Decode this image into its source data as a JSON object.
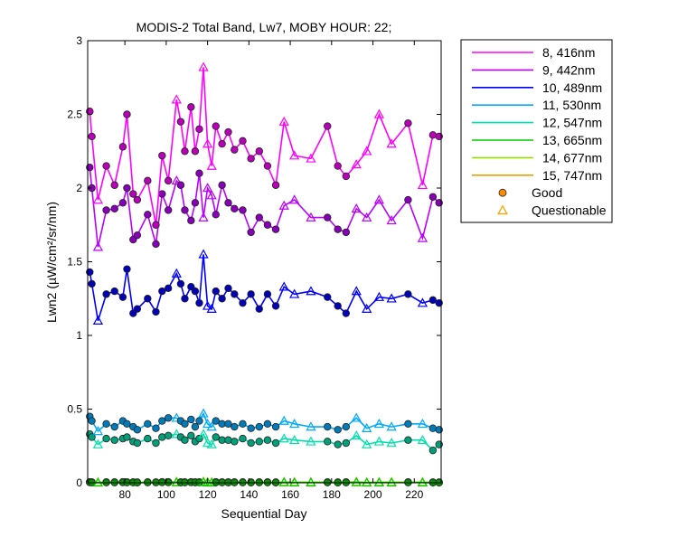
{
  "chart_data": {
    "type": "line",
    "title": "MODIS-2 Total Band, Lw7, MOBY HOUR: 22;",
    "xlabel": "Sequential Day",
    "ylabel": "Lwn2 (µW/cm²/sr/nm)",
    "xlim": [
      62,
      233
    ],
    "ylim": [
      0,
      3
    ],
    "xticks": [
      80,
      100,
      120,
      140,
      160,
      180,
      200,
      220
    ],
    "yticks": [
      0,
      0.5,
      1,
      1.5,
      2,
      2.5,
      3
    ],
    "ytick_labels": [
      "0",
      "0.5",
      "1",
      "1.5",
      "2",
      "2.5",
      "3"
    ],
    "grid": false,
    "legend_position": "outside-right",
    "markers": [
      {
        "name": "Good",
        "symbol": "circle",
        "color": "#ff8c00"
      },
      {
        "name": "Questionable",
        "symbol": "triangle",
        "color": "#ffa500"
      }
    ],
    "x": [
      63,
      64,
      67,
      71,
      75,
      79,
      81,
      84,
      86,
      91,
      95,
      98,
      101,
      105,
      107,
      109,
      112,
      114,
      116,
      118,
      120,
      122,
      124,
      127,
      130,
      133,
      137,
      141,
      145,
      149,
      153,
      157,
      162,
      170,
      178,
      183,
      187,
      192,
      197,
      203,
      209,
      217,
      224,
      229,
      232
    ],
    "series": [
      {
        "name": "8, 416nm",
        "color": "#ff00ff",
        "values": [
          2.52,
          2.35,
          1.92,
          2.15,
          2.02,
          2.28,
          2.5,
          1.96,
          1.92,
          2.05,
          1.75,
          2.22,
          2.05,
          2.6,
          2.45,
          2.25,
          2.55,
          2.25,
          2.4,
          2.82,
          2.3,
          2.15,
          2.42,
          2.3,
          2.38,
          2.26,
          2.32,
          2.2,
          2.25,
          2.15,
          2.02,
          2.45,
          2.22,
          2.2,
          2.42,
          2.15,
          2.08,
          2.16,
          2.25,
          2.5,
          2.3,
          2.44,
          2.02,
          2.36,
          2.35
        ]
      },
      {
        "name": "9, 442nm",
        "color": "#bb00ff",
        "values": [
          2.14,
          2.0,
          1.6,
          1.85,
          1.86,
          1.9,
          2.0,
          1.65,
          1.68,
          1.82,
          1.62,
          1.96,
          1.85,
          2.05,
          2.02,
          1.85,
          1.78,
          1.9,
          2.1,
          1.8,
          2.0,
          1.95,
          1.82,
          2.02,
          1.9,
          1.86,
          1.85,
          1.7,
          1.8,
          1.75,
          1.72,
          1.88,
          1.92,
          1.8,
          1.8,
          1.72,
          1.7,
          1.86,
          1.8,
          1.92,
          1.78,
          1.92,
          1.66,
          1.94,
          1.9
        ]
      },
      {
        "name": "10, 489nm",
        "color": "#0000ff",
        "values": [
          1.43,
          1.35,
          1.1,
          1.28,
          1.3,
          1.26,
          1.45,
          1.15,
          1.18,
          1.25,
          1.16,
          1.3,
          1.32,
          1.42,
          1.35,
          1.25,
          1.33,
          1.3,
          1.22,
          1.55,
          1.2,
          1.18,
          1.3,
          1.25,
          1.32,
          1.28,
          1.22,
          1.28,
          1.18,
          1.28,
          1.2,
          1.33,
          1.28,
          1.3,
          1.26,
          1.2,
          1.15,
          1.3,
          1.18,
          1.26,
          1.25,
          1.28,
          1.22,
          1.24,
          1.22
        ]
      },
      {
        "name": "11, 530nm",
        "color": "#00aaff",
        "values": [
          0.45,
          0.42,
          0.35,
          0.4,
          0.38,
          0.42,
          0.4,
          0.38,
          0.36,
          0.4,
          0.37,
          0.42,
          0.44,
          0.44,
          0.42,
          0.4,
          0.43,
          0.38,
          0.42,
          0.47,
          0.4,
          0.38,
          0.42,
          0.4,
          0.4,
          0.38,
          0.4,
          0.37,
          0.38,
          0.4,
          0.38,
          0.42,
          0.4,
          0.38,
          0.38,
          0.36,
          0.38,
          0.44,
          0.37,
          0.4,
          0.38,
          0.4,
          0.4,
          0.37,
          0.36
        ]
      },
      {
        "name": "12, 547nm",
        "color": "#00e0aa",
        "values": [
          0.33,
          0.31,
          0.26,
          0.3,
          0.29,
          0.3,
          0.31,
          0.28,
          0.27,
          0.3,
          0.27,
          0.31,
          0.32,
          0.33,
          0.31,
          0.29,
          0.32,
          0.28,
          0.3,
          0.33,
          0.27,
          0.26,
          0.31,
          0.29,
          0.29,
          0.28,
          0.3,
          0.27,
          0.28,
          0.29,
          0.27,
          0.3,
          0.29,
          0.28,
          0.28,
          0.26,
          0.27,
          0.32,
          0.26,
          0.28,
          0.27,
          0.29,
          0.29,
          0.22,
          0.26
        ]
      },
      {
        "name": "13, 665nm",
        "color": "#00cc00",
        "values": [
          0.003,
          0.002,
          0.001,
          0.002,
          0.002,
          0.003,
          0.002,
          0.002,
          0.001,
          0.002,
          0.002,
          0.003,
          0.003,
          0.003,
          0.002,
          0.002,
          0.003,
          0.002,
          0.002,
          0.004,
          0.002,
          0.001,
          0.003,
          0.002,
          0.002,
          0.002,
          0.002,
          0.001,
          0.002,
          0.002,
          0.001,
          0.003,
          0.002,
          0.002,
          0.002,
          0.001,
          0.002,
          0.003,
          0.001,
          0.002,
          0.002,
          0.002,
          0.002,
          0.001,
          0.001
        ]
      },
      {
        "name": "14, 677nm",
        "color": "#99e000",
        "values": [
          0.006,
          0.005,
          0.004,
          0.005,
          0.005,
          0.006,
          0.005,
          0.005,
          0.004,
          0.005,
          0.004,
          0.006,
          0.006,
          0.007,
          0.005,
          0.005,
          0.006,
          0.005,
          0.005,
          0.008,
          0.005,
          0.004,
          0.006,
          0.005,
          0.005,
          0.005,
          0.005,
          0.004,
          0.005,
          0.005,
          0.004,
          0.006,
          0.005,
          0.005,
          0.005,
          0.004,
          0.005,
          0.007,
          0.004,
          0.005,
          0.005,
          0.005,
          0.005,
          0.004,
          0.004
        ]
      },
      {
        "name": "15, 747nm",
        "color": "#e8a000",
        "values": [
          0.004,
          0.003,
          0.002,
          0.003,
          0.003,
          0.004,
          0.003,
          0.003,
          0.002,
          0.003,
          0.003,
          0.004,
          0.004,
          0.005,
          0.003,
          0.003,
          0.004,
          0.003,
          0.003,
          0.006,
          0.003,
          0.002,
          0.004,
          0.003,
          0.003,
          0.003,
          0.003,
          0.002,
          0.003,
          0.003,
          0.002,
          0.004,
          0.003,
          0.003,
          0.003,
          0.002,
          0.003,
          0.005,
          0.002,
          0.003,
          0.003,
          0.003,
          0.003,
          0.002,
          0.002
        ]
      }
    ],
    "quality": [
      "good",
      "good",
      "questionable",
      "good",
      "good",
      "good",
      "good",
      "good",
      "good",
      "good",
      "good",
      "good",
      "good",
      "questionable",
      "good",
      "good",
      "good",
      "good",
      "good",
      "questionable",
      "questionable",
      "questionable",
      "good",
      "good",
      "good",
      "good",
      "good",
      "good",
      "good",
      "good",
      "good",
      "questionable",
      "questionable",
      "questionable",
      "good",
      "good",
      "good",
      "questionable",
      "questionable",
      "questionable",
      "questionable",
      "good",
      "questionable",
      "good",
      "good"
    ]
  }
}
